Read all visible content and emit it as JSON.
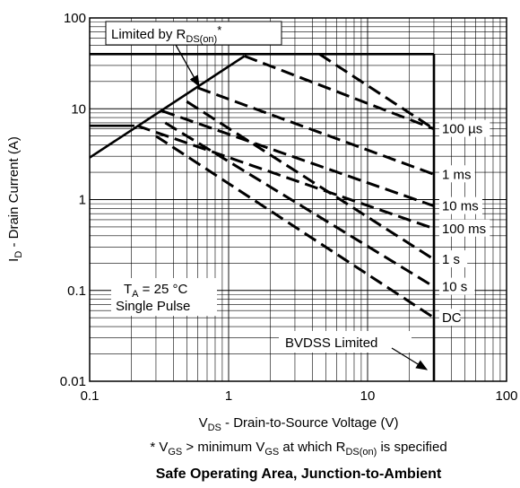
{
  "chart_data": {
    "type": "line",
    "title": "Safe Operating Area, Junction-to-Ambient",
    "footnote": {
      "prefix": "* V",
      "sub1": "GS",
      "mid1": " > minimum V",
      "sub2": "GS",
      "mid2": " at which R",
      "sub3": "DS(on)",
      "suffix": " is specified"
    },
    "xlabel": {
      "main": "V",
      "sub": "DS",
      "rest": " - Drain-to-Source Voltage (V)"
    },
    "ylabel": {
      "main": "I",
      "sub": "D",
      "rest": " - Drain Current (A)"
    },
    "x_scale": "log",
    "y_scale": "log",
    "xlim": [
      0.1,
      100
    ],
    "ylim": [
      0.01,
      100
    ],
    "grid": true,
    "x_ticks": [
      {
        "value": 0.1,
        "label": "0.1"
      },
      {
        "value": 1,
        "label": "1"
      },
      {
        "value": 10,
        "label": "10"
      },
      {
        "value": 100,
        "label": "100"
      }
    ],
    "y_ticks": [
      {
        "value": 100,
        "label": "100"
      },
      {
        "value": 10,
        "label": "10"
      },
      {
        "value": 1,
        "label": "1"
      },
      {
        "value": 0.1,
        "label": "0.1"
      },
      {
        "value": 0.01,
        "label": "0.01"
      }
    ],
    "boundary": [
      {
        "x": 0.1,
        "y": 6.5
      },
      {
        "x": 0.21,
        "y": 6.5
      }
    ],
    "rds_limit": [
      {
        "x": 0.1,
        "y": 2.9
      },
      {
        "x": 1.3,
        "y": 38
      }
    ],
    "max_current": [
      {
        "x": 0.1,
        "y": 40
      },
      {
        "x": 30,
        "y": 40
      }
    ],
    "bvdss": [
      {
        "x": 30,
        "y": 40
      },
      {
        "x": 30,
        "y": 0.01
      }
    ],
    "series": [
      {
        "label": "100 µs",
        "points": [
          {
            "x": 1.3,
            "y": 38
          },
          {
            "x": 30,
            "y": 6
          }
        ]
      },
      {
        "label": "1 ms",
        "points": [
          {
            "x": 0.6,
            "y": 17
          },
          {
            "x": 30,
            "y": 1.9
          }
        ]
      },
      {
        "label": "10 ms",
        "points": [
          {
            "x": 0.33,
            "y": 9.5
          },
          {
            "x": 30,
            "y": 0.85
          }
        ]
      },
      {
        "label": "100 ms",
        "points": [
          {
            "x": 0.22,
            "y": 6.5
          },
          {
            "x": 30,
            "y": 0.48
          }
        ]
      },
      {
        "label": "1 s",
        "points": [
          {
            "x": 0.5,
            "y": 12
          },
          {
            "x": 30,
            "y": 0.22
          }
        ]
      },
      {
        "label": "10 s",
        "points": [
          {
            "x": 0.35,
            "y": 7
          },
          {
            "x": 30,
            "y": 0.11
          }
        ]
      },
      {
        "label": "DC",
        "points": [
          {
            "x": 0.3,
            "y": 5
          },
          {
            "x": 30,
            "y": 0.05
          }
        ]
      },
      {
        "label": "",
        "points": [
          {
            "x": 4.5,
            "y": 40
          },
          {
            "x": 30,
            "y": 6
          }
        ]
      }
    ],
    "annotations": {
      "rds": {
        "prefix": "Limited by R",
        "sub": "DS(on)",
        "suffix": "*"
      },
      "conditions": {
        "line1_main": "T",
        "line1_sub": "A",
        "line1_rest": " = 25 °C",
        "line2": "Single Pulse"
      },
      "bvdss_label": "BVDSS Limited"
    }
  }
}
